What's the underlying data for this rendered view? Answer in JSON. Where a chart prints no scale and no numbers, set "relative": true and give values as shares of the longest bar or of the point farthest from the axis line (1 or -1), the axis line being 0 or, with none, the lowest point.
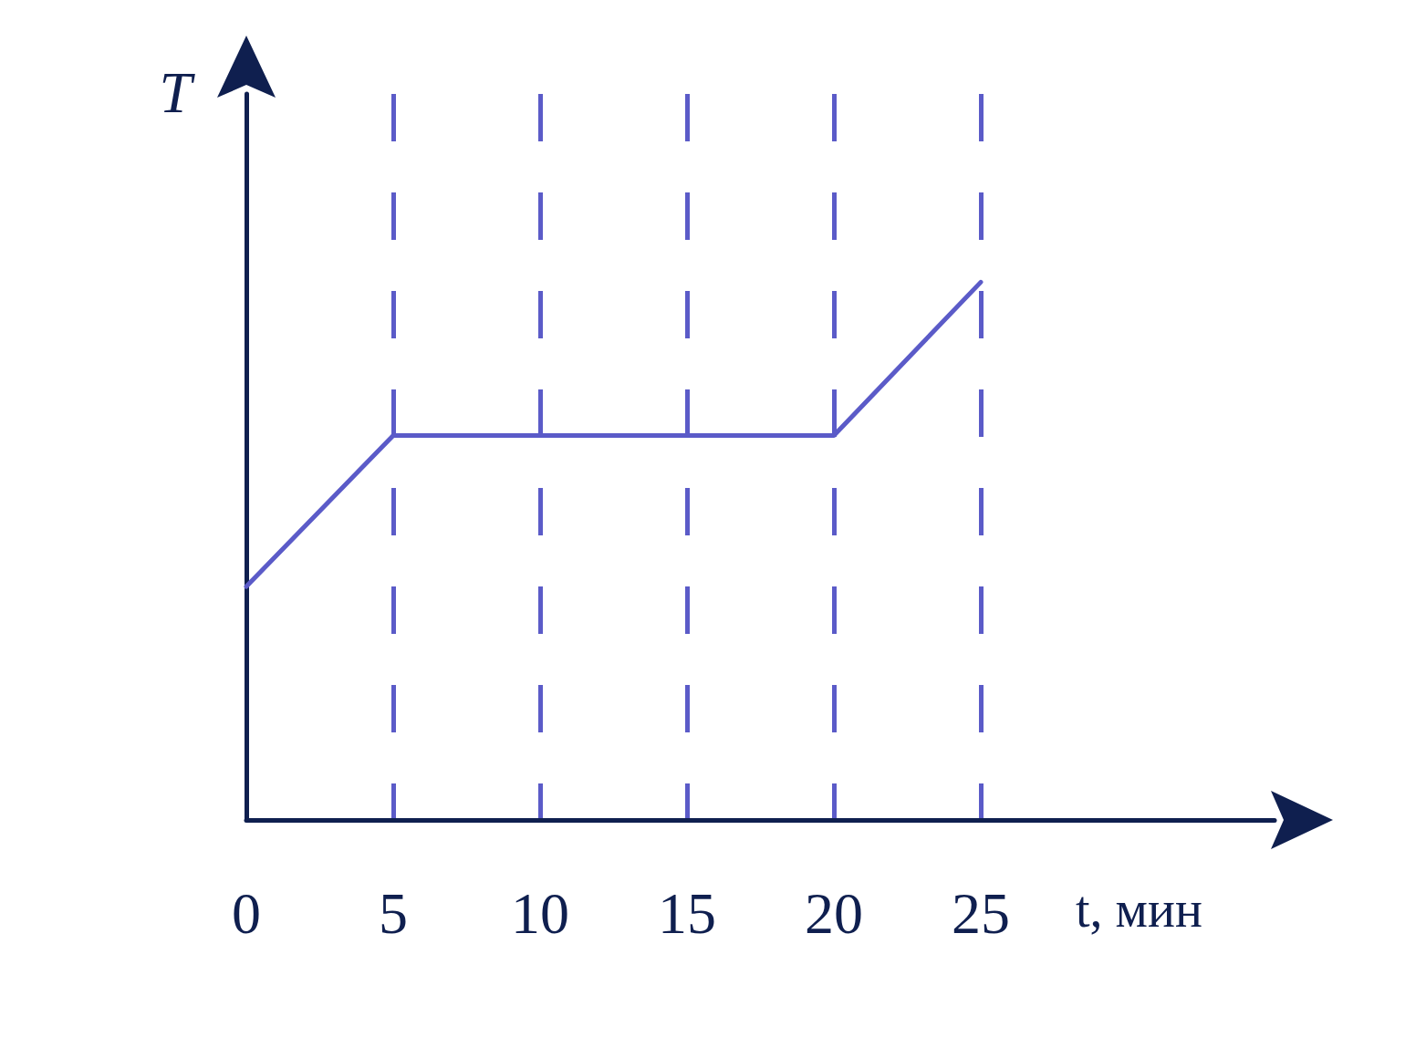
{
  "chart_data": {
    "type": "line",
    "xlabel": "t, мин",
    "ylabel": "T",
    "relative": true,
    "grid": "x",
    "line_style": "solid",
    "xlim": [
      0,
      35
    ],
    "xticks": [
      0,
      5,
      10,
      15,
      20,
      25
    ],
    "series": [
      {
        "color": "#5b5bc8",
        "x": [
          0,
          5,
          20,
          25
        ],
        "values": [
          0.434,
          0.715,
          0.715,
          1
        ]
      }
    ]
  }
}
